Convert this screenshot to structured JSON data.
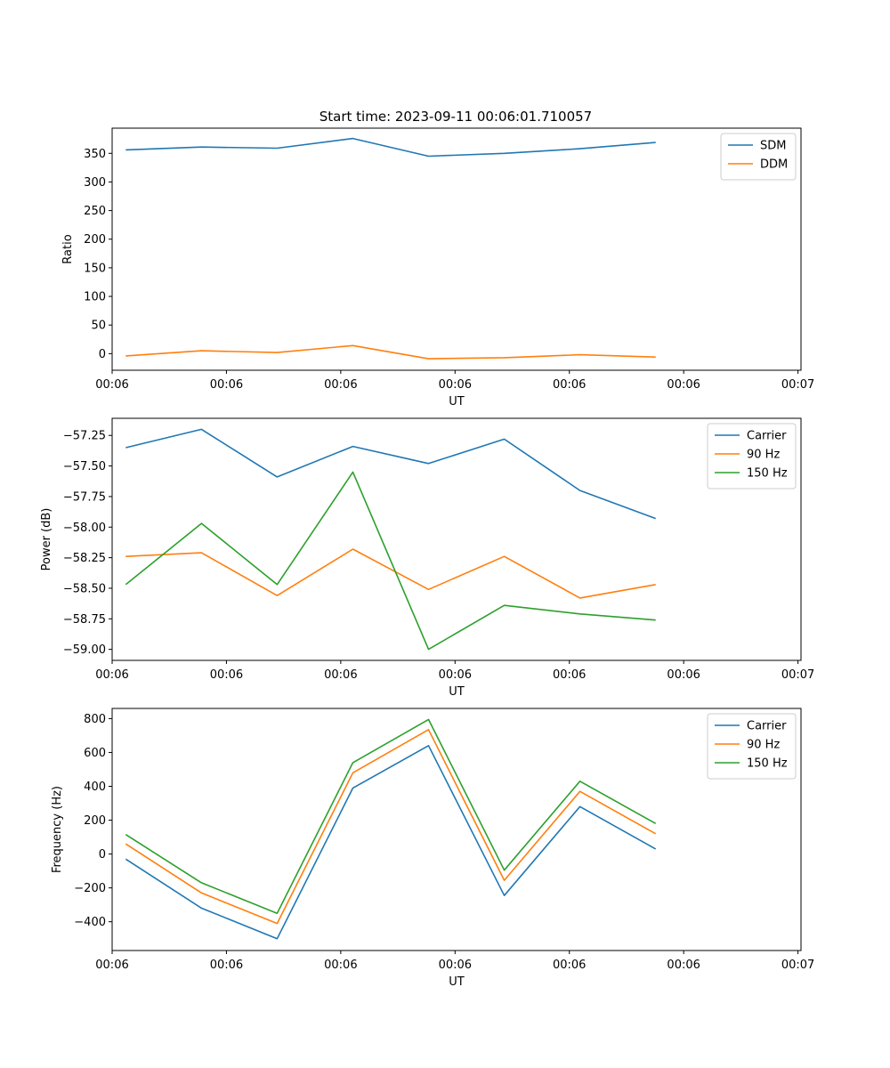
{
  "figure": {
    "title": "Start time: 2023-09-11 00:06:01.710057"
  },
  "chart_data": [
    {
      "type": "line",
      "title": "Start time: 2023-09-11 00:06:01.710057",
      "xlabel": "UT",
      "ylabel": "Ratio",
      "x": [
        1,
        2,
        3,
        4,
        5,
        6,
        7,
        8
      ],
      "xlim": [
        0.82,
        9.92
      ],
      "x_ticks": [
        {
          "v": 0.82,
          "label": "00:06"
        },
        {
          "v": 2.33,
          "label": "00:06"
        },
        {
          "v": 3.84,
          "label": "00:06"
        },
        {
          "v": 5.35,
          "label": "00:06"
        },
        {
          "v": 6.86,
          "label": "00:06"
        },
        {
          "v": 8.37,
          "label": "00:06"
        },
        {
          "v": 9.88,
          "label": "00:07"
        }
      ],
      "ylim": [
        -29,
        394
      ],
      "y_ticks": [
        {
          "v": 0,
          "label": "0"
        },
        {
          "v": 50,
          "label": "50"
        },
        {
          "v": 100,
          "label": "100"
        },
        {
          "v": 150,
          "label": "150"
        },
        {
          "v": 200,
          "label": "200"
        },
        {
          "v": 250,
          "label": "250"
        },
        {
          "v": 300,
          "label": "300"
        },
        {
          "v": 350,
          "label": "350"
        }
      ],
      "legend_position": "top-right",
      "series": [
        {
          "name": "SDM",
          "color": "#1f77b4",
          "values": [
            356,
            361,
            359,
            376,
            345,
            350,
            358,
            369
          ]
        },
        {
          "name": "DDM",
          "color": "#ff7f0e",
          "values": [
            -4,
            5,
            2,
            14,
            -9,
            -7,
            -2,
            -6
          ]
        }
      ]
    },
    {
      "type": "line",
      "title": "",
      "xlabel": "UT",
      "ylabel": "Power (dB)",
      "x": [
        1,
        2,
        3,
        4,
        5,
        6,
        7,
        8
      ],
      "xlim": [
        0.82,
        9.92
      ],
      "x_ticks": [
        {
          "v": 0.82,
          "label": "00:06"
        },
        {
          "v": 2.33,
          "label": "00:06"
        },
        {
          "v": 3.84,
          "label": "00:06"
        },
        {
          "v": 5.35,
          "label": "00:06"
        },
        {
          "v": 6.86,
          "label": "00:06"
        },
        {
          "v": 8.37,
          "label": "00:06"
        },
        {
          "v": 9.88,
          "label": "00:07"
        }
      ],
      "ylim": [
        -59.09,
        -57.11
      ],
      "y_ticks": [
        {
          "v": -59.0,
          "label": "−59.00"
        },
        {
          "v": -58.75,
          "label": "−58.75"
        },
        {
          "v": -58.5,
          "label": "−58.50"
        },
        {
          "v": -58.25,
          "label": "−58.25"
        },
        {
          "v": -58.0,
          "label": "−58.00"
        },
        {
          "v": -57.75,
          "label": "−57.75"
        },
        {
          "v": -57.5,
          "label": "−57.50"
        },
        {
          "v": -57.25,
          "label": "−57.25"
        }
      ],
      "legend_position": "top-right",
      "series": [
        {
          "name": "Carrier",
          "color": "#1f77b4",
          "values": [
            -57.35,
            -57.2,
            -57.59,
            -57.34,
            -57.48,
            -57.28,
            -57.7,
            -57.93
          ]
        },
        {
          "name": "90 Hz",
          "color": "#ff7f0e",
          "values": [
            -58.24,
            -58.21,
            -58.56,
            -58.18,
            -58.51,
            -58.24,
            -58.58,
            -58.47
          ]
        },
        {
          "name": "150 Hz",
          "color": "#2ca02c",
          "values": [
            -58.47,
            -57.97,
            -58.47,
            -57.55,
            -59.0,
            -58.64,
            -58.71,
            -58.76
          ]
        }
      ]
    },
    {
      "type": "line",
      "title": "",
      "xlabel": "UT",
      "ylabel": "Frequency (Hz)",
      "x": [
        1,
        2,
        3,
        4,
        5,
        6,
        7,
        8
      ],
      "xlim": [
        0.82,
        9.92
      ],
      "x_ticks": [
        {
          "v": 0.82,
          "label": "00:06"
        },
        {
          "v": 2.33,
          "label": "00:06"
        },
        {
          "v": 3.84,
          "label": "00:06"
        },
        {
          "v": 5.35,
          "label": "00:06"
        },
        {
          "v": 6.86,
          "label": "00:06"
        },
        {
          "v": 8.37,
          "label": "00:06"
        },
        {
          "v": 9.88,
          "label": "00:07"
        }
      ],
      "ylim": [
        -570,
        860
      ],
      "y_ticks": [
        {
          "v": -400,
          "label": "−400"
        },
        {
          "v": -200,
          "label": "−200"
        },
        {
          "v": 0,
          "label": "0"
        },
        {
          "v": 200,
          "label": "200"
        },
        {
          "v": 400,
          "label": "400"
        },
        {
          "v": 600,
          "label": "600"
        },
        {
          "v": 800,
          "label": "800"
        }
      ],
      "legend_position": "top-right",
      "series": [
        {
          "name": "Carrier",
          "color": "#1f77b4",
          "values": [
            -30,
            -320,
            -500,
            390,
            640,
            -245,
            280,
            30
          ]
        },
        {
          "name": "90 Hz",
          "color": "#ff7f0e",
          "values": [
            60,
            -230,
            -410,
            480,
            735,
            -155,
            370,
            120
          ]
        },
        {
          "name": "150 Hz",
          "color": "#2ca02c",
          "values": [
            115,
            -170,
            -350,
            540,
            795,
            -95,
            430,
            180
          ]
        }
      ]
    }
  ]
}
